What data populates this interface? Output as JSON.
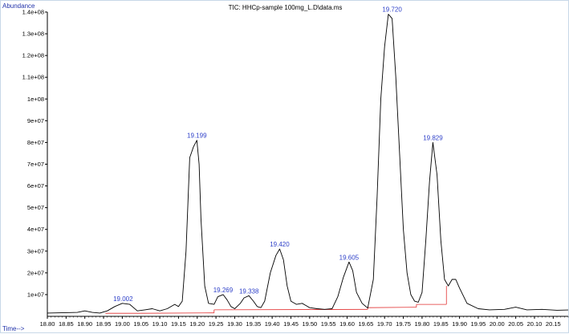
{
  "chart_data": {
    "type": "line",
    "title": "TIC: HHCp-sample 100mg_L.D\\data.ms",
    "ylabel": "Abundance",
    "xlabel": "Time-->",
    "xlim": [
      18.8,
      20.19
    ],
    "ylim": [
      0,
      140000000
    ],
    "grid": false,
    "x_ticks": [
      "18.80",
      "18.85",
      "18.90",
      "18.95",
      "19.00",
      "19.05",
      "19.10",
      "19.15",
      "19.20",
      "19.25",
      "19.30",
      "19.35",
      "19.40",
      "19.45",
      "19.50",
      "19.55",
      "19.60",
      "19.65",
      "19.70",
      "19.75",
      "19.80",
      "19.85",
      "19.90",
      "19.95",
      "20.00",
      "20.05",
      "20.10",
      "20.15"
    ],
    "y_ticks": [
      {
        "value": 10000000,
        "label": "1e+07"
      },
      {
        "value": 20000000,
        "label": "2e+07"
      },
      {
        "value": 30000000,
        "label": "3e+07"
      },
      {
        "value": 40000000,
        "label": "4e+07"
      },
      {
        "value": 50000000,
        "label": "5e+07"
      },
      {
        "value": 60000000,
        "label": "6e+07"
      },
      {
        "value": 70000000,
        "label": "7e+07"
      },
      {
        "value": 80000000,
        "label": "8e+07"
      },
      {
        "value": 90000000,
        "label": "9e+07"
      },
      {
        "value": 100000000,
        "label": "1e+08"
      },
      {
        "value": 110000000,
        "label": "1.1e+08"
      },
      {
        "value": 120000000,
        "label": "1.2e+08"
      },
      {
        "value": 130000000,
        "label": "1.3e+08"
      },
      {
        "value": 140000000,
        "label": "1.4e+08"
      }
    ],
    "series": [
      {
        "color": "#000000",
        "x": [
          18.8,
          18.85,
          18.88,
          18.9,
          18.92,
          18.94,
          18.96,
          18.98,
          19.0,
          19.02,
          19.04,
          19.06,
          19.08,
          19.1,
          19.12,
          19.14,
          19.15,
          19.16,
          19.17,
          19.18,
          19.19,
          19.199,
          19.205,
          19.21,
          19.22,
          19.23,
          19.245,
          19.255,
          19.269,
          19.28,
          19.29,
          19.3,
          19.315,
          19.325,
          19.338,
          19.35,
          19.36,
          19.37,
          19.38,
          19.395,
          19.41,
          19.42,
          19.43,
          19.44,
          19.45,
          19.465,
          19.48,
          19.5,
          19.52,
          19.54,
          19.56,
          19.575,
          19.59,
          19.605,
          19.615,
          19.625,
          19.64,
          19.655,
          19.67,
          19.68,
          19.69,
          19.7,
          19.71,
          19.72,
          19.73,
          19.74,
          19.75,
          19.76,
          19.77,
          19.78,
          19.79,
          19.8,
          19.81,
          19.82,
          19.829,
          19.84,
          19.85,
          19.86,
          19.87,
          19.88,
          19.89,
          19.9,
          19.92,
          19.95,
          19.98,
          20.02,
          20.05,
          20.08,
          20.12,
          20.16,
          20.19
        ],
        "y": [
          1500000,
          1700000,
          1800000,
          2500000,
          1800000,
          1500000,
          2500000,
          4500000,
          6000000,
          5500000,
          2500000,
          3000000,
          3500000,
          2500000,
          3500000,
          5500000,
          4500000,
          7000000,
          30000000,
          73000000,
          78000000,
          81000000,
          70000000,
          45000000,
          14000000,
          6000000,
          5500000,
          9000000,
          10000000,
          7500000,
          4500000,
          3500000,
          6000000,
          8500000,
          9500000,
          7000000,
          4500000,
          4000000,
          7000000,
          20000000,
          28000000,
          31000000,
          26000000,
          14000000,
          7000000,
          5500000,
          6000000,
          4000000,
          3500000,
          3200000,
          3500000,
          9000000,
          18000000,
          25000000,
          21000000,
          11000000,
          6000000,
          3800000,
          17000000,
          55000000,
          100000000,
          124000000,
          139000000,
          137000000,
          110000000,
          75000000,
          40000000,
          20000000,
          10000000,
          7000000,
          6500000,
          11000000,
          35000000,
          62000000,
          80000000,
          65000000,
          35000000,
          17000000,
          14000000,
          17000000,
          17000000,
          13000000,
          6000000,
          3500000,
          3000000,
          3200000,
          4200000,
          3000000,
          3200000,
          2800000,
          2900000
        ]
      }
    ],
    "baselines": [
      {
        "color": "#e23030",
        "segments": [
          {
            "x": [
              18.955,
              19.05
            ],
            "y": [
              1400000,
              1400000
            ]
          },
          {
            "x": [
              19.05,
              19.245
            ],
            "y": [
              1400000,
              1600000
            ]
          },
          {
            "x": [
              19.245,
              19.245
            ],
            "y": [
              1600000,
              3000000
            ]
          },
          {
            "x": [
              19.245,
              19.655
            ],
            "y": [
              3000000,
              3200000
            ]
          },
          {
            "x": [
              19.655,
              19.655
            ],
            "y": [
              3200000,
              4000000
            ]
          },
          {
            "x": [
              19.655,
              19.785
            ],
            "y": [
              4000000,
              4200000
            ]
          },
          {
            "x": [
              19.785,
              19.785
            ],
            "y": [
              4200000,
              5500000
            ]
          },
          {
            "x": [
              19.785,
              19.865
            ],
            "y": [
              5500000,
              5500000
            ]
          },
          {
            "x": [
              19.865,
              19.865
            ],
            "y": [
              5500000,
              14000000
            ]
          }
        ]
      }
    ],
    "annotations": [
      {
        "x": 19.002,
        "y": 6000000,
        "text": "19.002"
      },
      {
        "x": 19.199,
        "y": 81000000,
        "text": "19.199"
      },
      {
        "x": 19.269,
        "y": 10000000,
        "text": "19.269"
      },
      {
        "x": 19.338,
        "y": 9500000,
        "text": "19.338"
      },
      {
        "x": 19.42,
        "y": 31000000,
        "text": "19.420"
      },
      {
        "x": 19.605,
        "y": 25000000,
        "text": "19.605"
      },
      {
        "x": 19.72,
        "y": 139000000,
        "text": "19.720"
      },
      {
        "x": 19.829,
        "y": 80000000,
        "text": "19.829"
      }
    ]
  }
}
